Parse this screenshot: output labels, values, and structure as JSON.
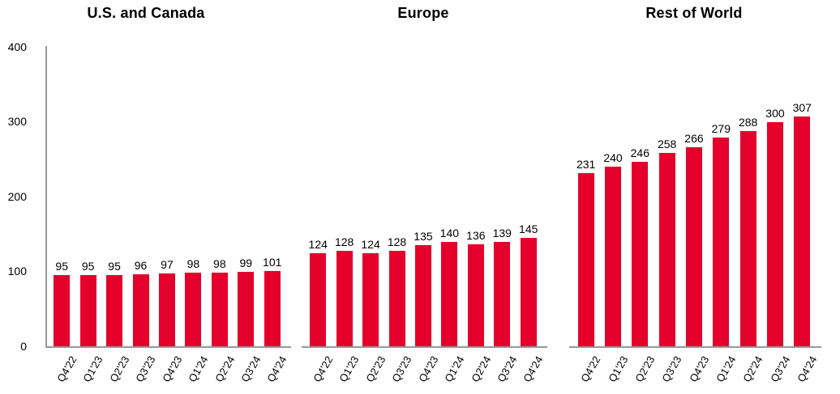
{
  "page": {
    "background": "#FFFFFF"
  },
  "colors": {
    "bar": "#E4002B",
    "axis_line": "#979797",
    "text": "#000000"
  },
  "chart_data": [
    {
      "type": "bar",
      "title": "U.S. and Canada",
      "categories": [
        "Q4'22",
        "Q1'23",
        "Q2'23",
        "Q3'23",
        "Q4'23",
        "Q1'24",
        "Q2'24",
        "Q3'24",
        "Q4'24"
      ],
      "values": [
        95,
        95,
        95,
        96,
        97,
        98,
        98,
        99,
        101
      ],
      "xlabel": "",
      "ylabel": "",
      "ylim": [
        0,
        400
      ],
      "yticks": [
        0,
        100,
        200,
        300,
        400
      ],
      "y_axis_visible": true,
      "grid": false,
      "legend": false,
      "value_labels": true,
      "bar_color": "#E4002B"
    },
    {
      "type": "bar",
      "title": "Europe",
      "categories": [
        "Q4'22",
        "Q1'23",
        "Q2'23",
        "Q3'23",
        "Q4'23",
        "Q1'24",
        "Q2'24",
        "Q3'24",
        "Q4'24"
      ],
      "values": [
        124,
        128,
        124,
        128,
        135,
        140,
        136,
        139,
        145
      ],
      "xlabel": "",
      "ylabel": "",
      "ylim": [
        0,
        400
      ],
      "yticks": [
        0,
        100,
        200,
        300,
        400
      ],
      "y_axis_visible": false,
      "grid": false,
      "legend": false,
      "value_labels": true,
      "bar_color": "#E4002B"
    },
    {
      "type": "bar",
      "title": "Rest of World",
      "categories": [
        "Q4'22",
        "Q1'23",
        "Q2'23",
        "Q3'23",
        "Q4'23",
        "Q1'24",
        "Q2'24",
        "Q3'24",
        "Q4'24"
      ],
      "values": [
        231,
        240,
        246,
        258,
        266,
        279,
        288,
        300,
        307
      ],
      "xlabel": "",
      "ylabel": "",
      "ylim": [
        0,
        400
      ],
      "yticks": [
        0,
        100,
        200,
        300,
        400
      ],
      "y_axis_visible": false,
      "grid": false,
      "legend": false,
      "value_labels": true,
      "bar_color": "#E4002B"
    }
  ]
}
